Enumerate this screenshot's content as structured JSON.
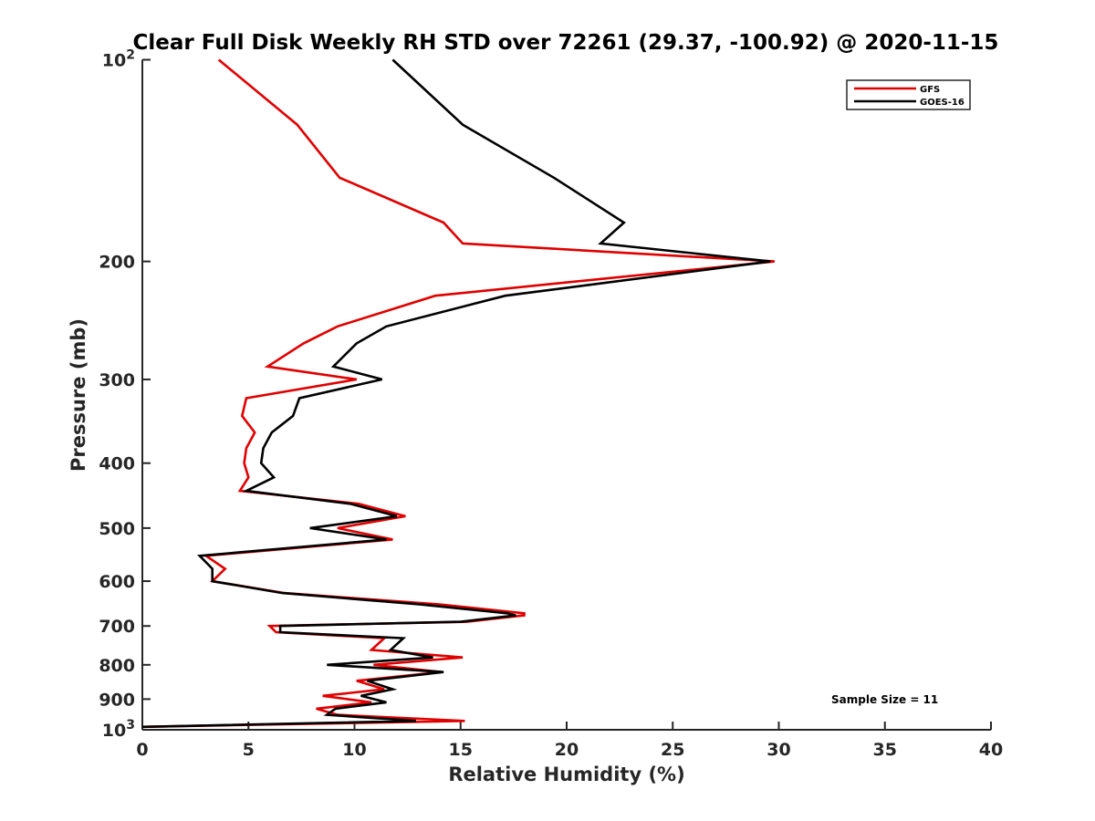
{
  "chart_data": {
    "type": "line",
    "title": "Clear Full Disk Weekly RH STD over 72261 (29.37, -100.92) @ 2020-11-15",
    "xlabel": "Relative Humidity (%)",
    "ylabel": "Pressure (mb)",
    "xlim": [
      0,
      40
    ],
    "ylim": [
      100,
      1000
    ],
    "y_scale": "log",
    "y_reversed": true,
    "grid": false,
    "legend_position": "top-right",
    "x_ticks": [
      0,
      5,
      10,
      15,
      20,
      25,
      30,
      35,
      40
    ],
    "x_tick_labels": [
      "0",
      "5",
      "10",
      "15",
      "20",
      "25",
      "30",
      "35",
      "40"
    ],
    "y_ticks": [
      100,
      200,
      300,
      400,
      500,
      600,
      700,
      800,
      900,
      1000
    ],
    "y_tick_labels": [
      {
        "base": "10",
        "exp": "2"
      },
      {
        "base": "200"
      },
      {
        "base": "300"
      },
      {
        "base": "400"
      },
      {
        "base": "500"
      },
      {
        "base": "600"
      },
      {
        "base": "700"
      },
      {
        "base": "800"
      },
      {
        "base": "900"
      },
      {
        "base": "10",
        "exp": "3"
      }
    ],
    "annotation": "Sample Size = 11",
    "series": [
      {
        "name": "GFS",
        "color": "#e00000",
        "points": [
          [
            3.6,
            100
          ],
          [
            7.3,
            125
          ],
          [
            9.3,
            150
          ],
          [
            14.2,
            175
          ],
          [
            15.1,
            188
          ],
          [
            29.8,
            200
          ],
          [
            13.8,
            225
          ],
          [
            9.2,
            250
          ],
          [
            7.6,
            265
          ],
          [
            5.9,
            287
          ],
          [
            10.1,
            300
          ],
          [
            4.9,
            320
          ],
          [
            4.7,
            340
          ],
          [
            5.3,
            360
          ],
          [
            4.9,
            380
          ],
          [
            4.8,
            400
          ],
          [
            5.0,
            420
          ],
          [
            4.6,
            440
          ],
          [
            10.2,
            460
          ],
          [
            12.4,
            480
          ],
          [
            9.2,
            500
          ],
          [
            11.8,
            520
          ],
          [
            3.0,
            550
          ],
          [
            3.9,
            575
          ],
          [
            3.3,
            600
          ],
          [
            6.7,
            625
          ],
          [
            14.0,
            650
          ],
          [
            18.0,
            670
          ],
          [
            18.0,
            675
          ],
          [
            15.3,
            690
          ],
          [
            6.0,
            700
          ],
          [
            6.3,
            715
          ],
          [
            11.4,
            730
          ],
          [
            10.8,
            760
          ],
          [
            15.1,
            780
          ],
          [
            10.9,
            800
          ],
          [
            14.1,
            820
          ],
          [
            10.1,
            845
          ],
          [
            11.4,
            870
          ],
          [
            8.5,
            890
          ],
          [
            10.8,
            910
          ],
          [
            8.2,
            930
          ],
          [
            9.2,
            950
          ],
          [
            15.2,
            970
          ],
          [
            0.0,
            990
          ]
        ]
      },
      {
        "name": "GOES-16",
        "color": "#000000",
        "points": [
          [
            11.8,
            100
          ],
          [
            15.1,
            125
          ],
          [
            19.4,
            150
          ],
          [
            22.7,
            175
          ],
          [
            21.6,
            188
          ],
          [
            29.6,
            200
          ],
          [
            17.1,
            225
          ],
          [
            11.5,
            250
          ],
          [
            10.1,
            265
          ],
          [
            9.0,
            287
          ],
          [
            11.3,
            300
          ],
          [
            7.4,
            320
          ],
          [
            7.1,
            340
          ],
          [
            6.1,
            360
          ],
          [
            5.7,
            380
          ],
          [
            5.6,
            400
          ],
          [
            6.2,
            420
          ],
          [
            4.9,
            440
          ],
          [
            9.8,
            460
          ],
          [
            12.0,
            480
          ],
          [
            7.9,
            500
          ],
          [
            11.5,
            520
          ],
          [
            2.7,
            550
          ],
          [
            3.3,
            575
          ],
          [
            3.3,
            600
          ],
          [
            6.6,
            625
          ],
          [
            13.1,
            650
          ],
          [
            17.2,
            670
          ],
          [
            17.6,
            675
          ],
          [
            15.0,
            690
          ],
          [
            6.5,
            700
          ],
          [
            6.5,
            715
          ],
          [
            12.3,
            730
          ],
          [
            11.7,
            760
          ],
          [
            13.7,
            780
          ],
          [
            8.7,
            800
          ],
          [
            14.2,
            820
          ],
          [
            10.6,
            845
          ],
          [
            11.8,
            870
          ],
          [
            10.3,
            890
          ],
          [
            11.5,
            910
          ],
          [
            9.1,
            930
          ],
          [
            8.7,
            950
          ],
          [
            12.9,
            970
          ],
          [
            0.0,
            990
          ]
        ]
      }
    ]
  }
}
